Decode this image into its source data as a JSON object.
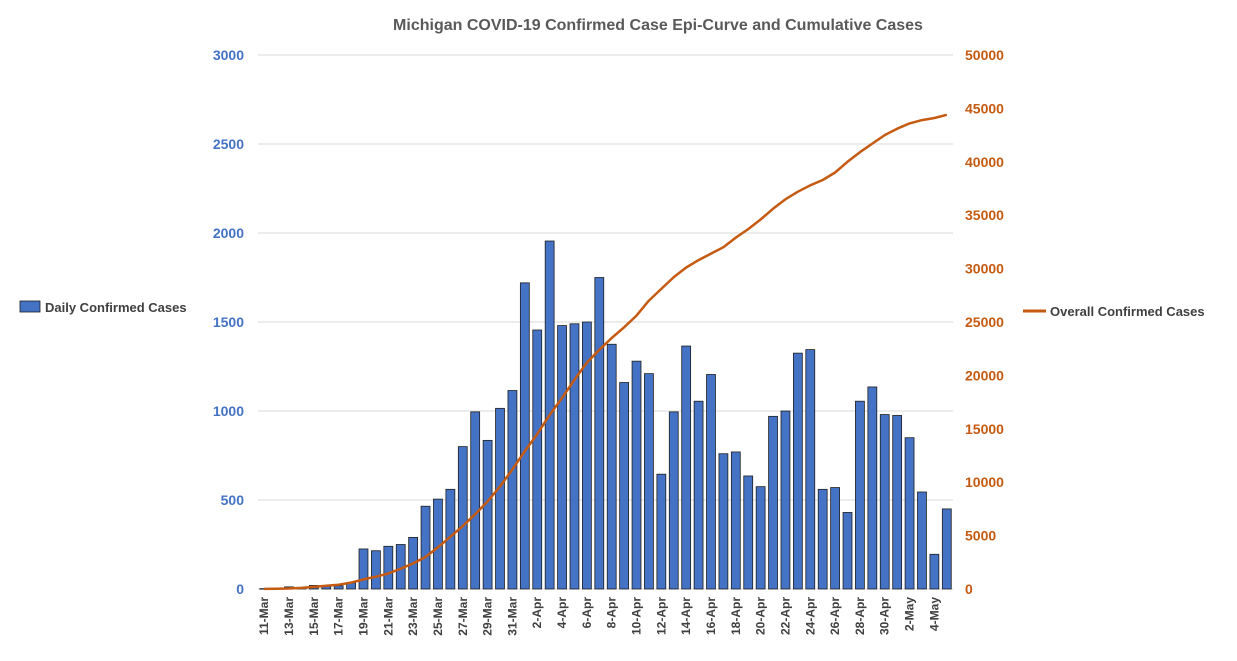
{
  "colors": {
    "bars": "#4472c4",
    "line": "#c55a11",
    "left_axis": "#4472c4",
    "right_axis": "#c55a11",
    "grid": "#d9d9d9"
  },
  "chart_data": {
    "type": "bar",
    "title": "Michigan COVID-19 Confirmed Case Epi-Curve and Cumulative Cases",
    "xlabel": "",
    "ylabel": "",
    "ylim": [
      0,
      3000
    ],
    "y2lim": [
      0,
      50000
    ],
    "yticks": [
      "0",
      "500",
      "1000",
      "1500",
      "2000",
      "2500",
      "3000"
    ],
    "y2ticks": [
      "0",
      "5000",
      "10000",
      "15000",
      "20000",
      "25000",
      "30000",
      "35000",
      "40000",
      "45000",
      "50000"
    ],
    "grid": true,
    "legend": [
      "left",
      "right"
    ],
    "categories": [
      "11-Mar",
      "12-Mar",
      "13-Mar",
      "14-Mar",
      "15-Mar",
      "16-Mar",
      "17-Mar",
      "18-Mar",
      "19-Mar",
      "20-Mar",
      "21-Mar",
      "22-Mar",
      "23-Mar",
      "24-Mar",
      "25-Mar",
      "26-Mar",
      "27-Mar",
      "28-Mar",
      "29-Mar",
      "30-Mar",
      "31-Mar",
      "1-Apr",
      "2-Apr",
      "3-Apr",
      "4-Apr",
      "5-Apr",
      "6-Apr",
      "7-Apr",
      "8-Apr",
      "9-Apr",
      "10-Apr",
      "11-Apr",
      "12-Apr",
      "13-Apr",
      "14-Apr",
      "15-Apr",
      "16-Apr",
      "17-Apr",
      "18-Apr",
      "19-Apr",
      "20-Apr",
      "21-Apr",
      "22-Apr",
      "23-Apr",
      "24-Apr",
      "25-Apr",
      "26-Apr",
      "27-Apr",
      "28-Apr",
      "29-Apr",
      "30-Apr",
      "1-May",
      "2-May",
      "3-May",
      "4-May",
      "5-May"
    ],
    "series": [
      {
        "name": "Daily Confirmed Cases",
        "kind": "bar",
        "axis": "left",
        "values": [
          2,
          5,
          12,
          8,
          20,
          15,
          18,
          35,
          225,
          215,
          240,
          250,
          290,
          465,
          505,
          560,
          800,
          995,
          835,
          1015,
          1115,
          1720,
          1455,
          1955,
          1480,
          1490,
          1500,
          1750,
          1375,
          1160,
          1280,
          1210,
          645,
          995,
          1365,
          1055,
          1205,
          760,
          770,
          635,
          575,
          970,
          1000,
          1325,
          1345,
          560,
          570,
          430,
          1055,
          1135,
          980,
          975,
          850,
          545,
          195,
          450
        ]
      },
      {
        "name": "Overall Confirmed Cases",
        "kind": "line",
        "axis": "right",
        "values": [
          5,
          20,
          50,
          100,
          200,
          300,
          400,
          600,
          900,
          1150,
          1450,
          1900,
          2400,
          3000,
          3900,
          4900,
          5900,
          7000,
          8200,
          9600,
          11200,
          12900,
          14500,
          16300,
          17900,
          19600,
          21200,
          22400,
          23500,
          24500,
          25600,
          27000,
          28100,
          29200,
          30100,
          30800,
          31400,
          32000,
          32900,
          33700,
          34600,
          35600,
          36500,
          37200,
          37800,
          38300,
          39000,
          40000,
          40900,
          41700,
          42500,
          43100,
          43600,
          43900,
          44100,
          44400
        ]
      }
    ]
  }
}
